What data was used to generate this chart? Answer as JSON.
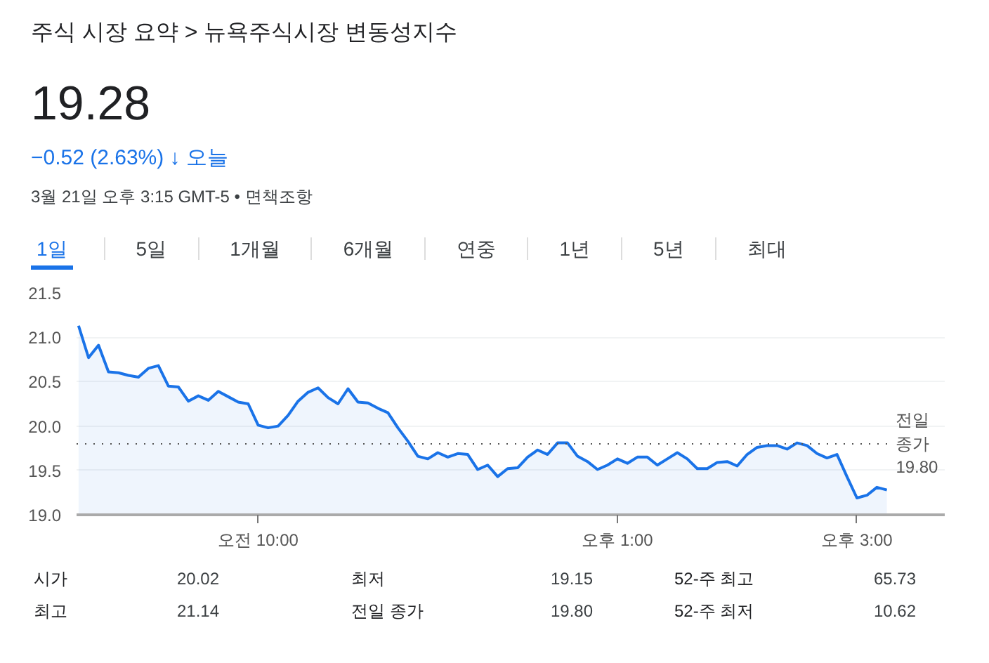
{
  "chart_data": {
    "type": "area",
    "title": "주식 시장 요약 > 뉴욕주식시장 변동성지수",
    "subtitle": "19.28",
    "annotations": [
      "−0.52 (2.63%) ↓ 오늘",
      "3월 21일 오후 3:15 GMT-5 • 면책조항",
      "1일",
      "5일",
      "1개월",
      "6개월",
      "연중",
      "1년",
      "5년",
      "최대",
      "시가",
      "20.02",
      "최저",
      "19.15",
      "52-주 최고",
      "65.73",
      "최고",
      "21.14",
      "전일 종가",
      "19.80",
      "52-주 최저",
      "10.62"
    ],
    "categories": [
      null,
      null,
      null,
      null,
      null,
      null,
      null,
      null,
      null,
      null,
      null,
      null,
      null,
      null,
      null,
      null,
      null,
      null,
      "오전 10:00",
      null,
      null,
      null,
      null,
      null,
      null,
      null,
      null,
      null,
      null,
      null,
      null,
      null,
      null,
      null,
      null,
      null,
      null,
      null,
      null,
      null,
      null,
      null,
      null,
      null,
      null,
      null,
      null,
      null,
      null,
      null,
      null,
      null,
      null,
      null,
      "오후 1:00",
      null,
      null,
      null,
      null,
      null,
      null,
      null,
      null,
      null,
      null,
      null,
      null,
      null,
      null,
      null,
      null,
      null,
      null,
      null,
      null,
      null,
      null,
      null,
      "오후 3:00",
      null,
      null,
      null
    ],
    "ylim": [
      19.0,
      21.5
    ],
    "yticks": [
      {
        "value": 19.0,
        "label": "19.0"
      },
      {
        "value": 19.5,
        "label": "19.5"
      },
      {
        "value": 20.0,
        "label": "20.0"
      },
      {
        "value": 20.5,
        "label": "20.5"
      },
      {
        "value": 21.0,
        "label": "21.0"
      },
      {
        "value": 21.5,
        "label": "21.5"
      }
    ],
    "grid": "y",
    "ref_lines": [
      {
        "axis": "y",
        "value": 19.8,
        "label": "전일 종가 19.80",
        "color": "#555555",
        "line_style": "dotted"
      }
    ],
    "series": [
      {
        "color": "#1a73e8",
        "values": [
          21.13,
          20.77,
          20.91,
          20.61,
          20.6,
          20.57,
          20.55,
          20.65,
          20.68,
          20.45,
          20.44,
          20.28,
          20.34,
          20.29,
          20.39,
          20.33,
          20.27,
          20.25,
          20.01,
          19.98,
          20.0,
          20.12,
          20.28,
          20.38,
          20.43,
          20.32,
          20.25,
          20.42,
          20.27,
          20.26,
          20.2,
          20.15,
          19.98,
          19.83,
          19.66,
          19.63,
          19.7,
          19.65,
          19.69,
          19.68,
          19.51,
          19.56,
          19.43,
          19.52,
          19.53,
          19.65,
          19.73,
          19.68,
          19.81,
          19.81,
          19.66,
          19.6,
          19.51,
          19.56,
          19.63,
          19.58,
          19.65,
          19.65,
          19.56,
          19.63,
          19.7,
          19.63,
          19.52,
          19.52,
          19.59,
          19.6,
          19.55,
          19.68,
          19.76,
          19.78,
          19.78,
          19.74,
          19.81,
          19.78,
          19.69,
          19.64,
          19.68,
          19.43,
          19.19,
          19.22,
          19.31,
          19.28
        ]
      }
    ]
  }
}
